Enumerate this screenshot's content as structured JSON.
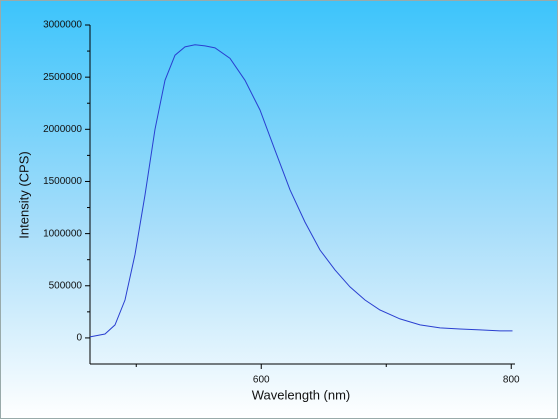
{
  "chart_data": {
    "type": "line",
    "x_label": "Wavelength (nm)",
    "y_label": "Intensity (CPS)",
    "series": [
      {
        "color": "#2a3fd0",
        "x": [
          463,
          475,
          483,
          491,
          499,
          507,
          515,
          523,
          531,
          539,
          547,
          555,
          563,
          575,
          587,
          599,
          611,
          623,
          635,
          647,
          659,
          671,
          683,
          695,
          711,
          727,
          743,
          759,
          775,
          791,
          801
        ],
        "values": [
          10000,
          38000,
          125000,
          364000,
          800000,
          1370000,
          2000000,
          2470000,
          2710000,
          2790000,
          2810000,
          2800000,
          2780000,
          2680000,
          2470000,
          2185000,
          1800000,
          1420000,
          1110000,
          843000,
          652000,
          489000,
          364000,
          268000,
          182000,
          125000,
          96000,
          86000,
          77000,
          67000,
          67000
        ]
      }
    ],
    "xlim": [
      463,
      803
    ],
    "xticks": [
      600,
      800
    ],
    "xminor_ticks": [
      500,
      700
    ],
    "ylim": [
      -250000,
      3000000
    ],
    "yticks": [
      0,
      500000,
      1000000,
      1500000,
      2000000,
      2500000,
      3000000
    ],
    "yminor_ticks": [
      250000,
      750000,
      1250000,
      1750000,
      2250000,
      2750000
    ]
  }
}
